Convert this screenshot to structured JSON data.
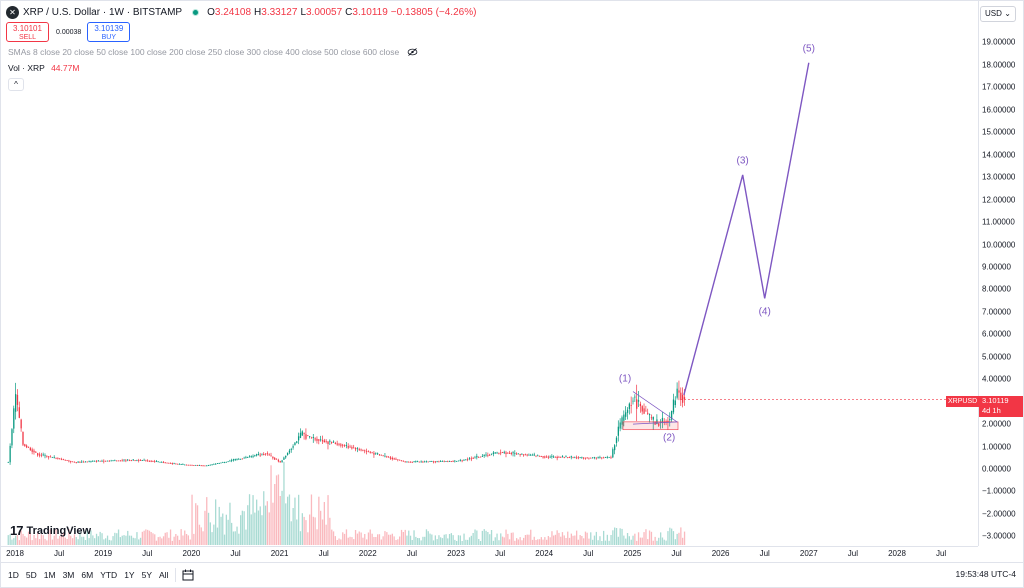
{
  "header": {
    "symbol_icon": "xrp-logo-icon",
    "title": "XRP / U.S. Dollar · 1W · BITSTAMP",
    "ohlc": [
      {
        "k": "O",
        "v": "3.24108"
      },
      {
        "k": "H",
        "v": "3.33127"
      },
      {
        "k": "L",
        "v": "3.00057"
      },
      {
        "k": "C",
        "v": "3.10119"
      },
      {
        "k": "",
        "v": "−0.13805 (−4.26%)"
      }
    ]
  },
  "trade": {
    "sell_price": "3.10101",
    "sell_label": "SELL",
    "spread": "0.00038",
    "buy_price": "3.10139",
    "buy_label": "BUY"
  },
  "legend": {
    "sma_text": "SMAs 8 close 20 close 50 close 100 close 200 close 250 close 300 close 400 close 500 close 600 close",
    "vol_label": "Vol · XRP",
    "vol_value": "44.77M",
    "collapse_glyph": "^"
  },
  "price_scale": {
    "currency": "USD",
    "ticks": [
      "19.00000",
      "18.00000",
      "17.00000",
      "16.00000",
      "15.00000",
      "14.00000",
      "13.00000",
      "12.00000",
      "11.00000",
      "10.00000",
      "9.00000",
      "8.00000",
      "7.00000",
      "6.00000",
      "5.00000",
      "4.00000",
      "3.00000",
      "2.00000",
      "1.00000",
      "0.00000",
      "−1.00000",
      "−2.00000",
      "−3.00000"
    ],
    "last_symbol": "XRPUSD",
    "last_price": "3.10119",
    "last_countdown": "4d 1h"
  },
  "time_scale": {
    "ticks": [
      "2018",
      "Jul",
      "2019",
      "Jul",
      "2020",
      "Jul",
      "2021",
      "Jul",
      "2022",
      "Jul",
      "2023",
      "Jul",
      "2024",
      "Jul",
      "2025",
      "Jul",
      "2026",
      "Jul",
      "2027",
      "Jul",
      "2028",
      "Jul"
    ]
  },
  "bottom_bar": {
    "ranges": [
      "1D",
      "5D",
      "1M",
      "3M",
      "6M",
      "YTD",
      "1Y",
      "5Y",
      "All"
    ],
    "clock": "19:53:48 UTC-4"
  },
  "branding": {
    "text": "TradingView"
  },
  "colors": {
    "up": "#089981",
    "down": "#f23645",
    "wave": "#7e57c2",
    "accent": "#2962ff"
  },
  "chart_data": {
    "type": "line",
    "title": "",
    "xlabel": "",
    "ylabel": "",
    "ylim": [
      -3.0,
      19.9
    ],
    "x_range": [
      "2018-01",
      "2028-12"
    ],
    "series": [
      {
        "x": [
          "2017-12",
          "2018-01",
          "2018-02",
          "2018-04",
          "2018-07",
          "2018-09",
          "2018-12",
          "2019-06",
          "2019-12",
          "2020-03",
          "2020-11",
          "2021-01",
          "2021-04",
          "2021-05",
          "2021-09",
          "2021-12",
          "2022-06",
          "2023-01",
          "2023-07",
          "2024-01",
          "2024-07",
          "2024-10",
          "2024-11",
          "2024-12",
          "2025-01",
          "2025-04",
          "2025-06",
          "2025-07",
          "2025-08"
        ],
        "values": [
          0.3,
          3.3,
          1.1,
          0.65,
          0.45,
          0.3,
          0.36,
          0.4,
          0.19,
          0.15,
          0.7,
          0.3,
          1.6,
          1.4,
          1.1,
          0.85,
          0.32,
          0.35,
          0.75,
          0.55,
          0.5,
          0.52,
          1.8,
          2.5,
          3.2,
          2.0,
          2.2,
          3.5,
          3.1
        ]
      },
      {
        "name": "",
        "values": []
      }
    ],
    "waves": [
      {
        "label": "(1)",
        "x": "2024-12",
        "y": 3.4
      },
      {
        "label": "(2)",
        "x": "2025-06",
        "y": 1.9
      },
      {
        "label": "(3)",
        "x": "2026-04",
        "y": 13.1
      },
      {
        "label": "(4)",
        "x": "2026-07",
        "y": 7.6
      },
      {
        "label": "(5)",
        "x": "2027-01",
        "y": 18.1
      }
    ],
    "grid": false
  }
}
